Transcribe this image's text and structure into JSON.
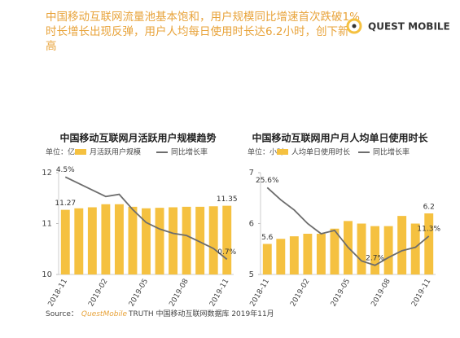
{
  "header": {
    "title_lines": [
      "中国移动互联网流量池基本饱和，用户规模同比增速首次跌破1%",
      "时长增长出现反弹，用户人均每日使用时长达6.2小时，创下新",
      "高"
    ],
    "logo": "QUEST MOBILE"
  },
  "chart_data": [
    {
      "type": "combo",
      "title": "中国移动互联网月活跃用户规模趋势",
      "unit": "单位：亿",
      "categories": [
        "2018-11",
        null,
        null,
        "2019-02",
        null,
        null,
        "2019-05",
        null,
        null,
        "2019-08",
        null,
        null,
        "2019-11"
      ],
      "ylim": [
        10,
        12
      ],
      "yticks": [
        10,
        11,
        12
      ],
      "y2lim": [
        0,
        4.7
      ],
      "series": [
        {
          "name": "月活跃用户规模",
          "type": "bar",
          "color": "#f5c140",
          "values": [
            11.27,
            11.3,
            11.32,
            11.38,
            11.38,
            11.33,
            11.3,
            11.31,
            11.32,
            11.33,
            11.33,
            11.34,
            11.35
          ],
          "value_labels": [
            "11.27",
            null,
            null,
            null,
            null,
            null,
            null,
            null,
            null,
            null,
            null,
            null,
            "11.35"
          ]
        },
        {
          "name": "同比增长率",
          "type": "line",
          "axis": "y2",
          "color": "#6d6d6d",
          "values": [
            4.5,
            4.2,
            3.9,
            3.6,
            3.7,
            3.0,
            2.4,
            2.1,
            1.9,
            1.8,
            1.5,
            1.2,
            0.7
          ],
          "value_labels": [
            "4.5%",
            null,
            null,
            null,
            null,
            null,
            null,
            null,
            null,
            null,
            null,
            null,
            "0.7%"
          ]
        }
      ]
    },
    {
      "type": "combo",
      "title": "中国移动互联网用户月人均单日使用时长",
      "unit": "单位：小时",
      "categories": [
        "2018-11",
        null,
        null,
        "2019-02",
        null,
        null,
        "2019-05",
        null,
        null,
        "2019-08",
        null,
        null,
        "2019-11"
      ],
      "ylim": [
        5,
        7
      ],
      "yticks": [
        5,
        6,
        7
      ],
      "y2lim": [
        0,
        30
      ],
      "series": [
        {
          "name": "人均单日使用时长",
          "type": "bar",
          "color": "#f5c140",
          "values": [
            5.6,
            5.7,
            5.75,
            5.8,
            5.8,
            5.9,
            6.05,
            6.0,
            5.95,
            5.95,
            6.15,
            6.0,
            6.2
          ],
          "value_labels": [
            "5.6",
            null,
            null,
            null,
            null,
            null,
            null,
            null,
            null,
            null,
            null,
            null,
            "6.2"
          ]
        },
        {
          "name": "同比增长率",
          "type": "line",
          "axis": "y2",
          "color": "#6d6d6d",
          "values": [
            25.6,
            22,
            19,
            15,
            12,
            13,
            8,
            4,
            2.7,
            5,
            7,
            8,
            11.3
          ],
          "value_labels": [
            "25.6%",
            null,
            null,
            null,
            null,
            null,
            null,
            null,
            "2.7%",
            null,
            null,
            null,
            "11.3%"
          ]
        }
      ]
    }
  ],
  "footer": {
    "label": "Source：",
    "brand": "QuestMobile",
    "text": "TRUTH 中国移动互联网数据库 2019年11月"
  }
}
